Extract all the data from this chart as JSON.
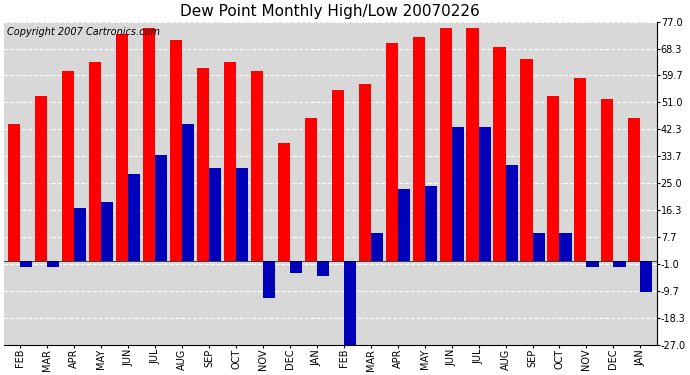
{
  "title": "Dew Point Monthly High/Low 20070226",
  "copyright": "Copyright 2007 Cartronics.com",
  "months": [
    "FEB",
    "MAR",
    "APR",
    "MAY",
    "JUN",
    "JUL",
    "AUG",
    "SEP",
    "OCT",
    "NOV",
    "DEC",
    "JAN",
    "FEB",
    "MAR",
    "APR",
    "MAY",
    "JUN",
    "JUL",
    "AUG",
    "SEP",
    "OCT",
    "NOV",
    "DEC",
    "JAN"
  ],
  "highs": [
    44,
    53,
    61,
    64,
    73,
    75,
    71,
    62,
    64,
    61,
    38,
    46,
    55,
    57,
    70,
    72,
    75,
    75,
    69,
    65,
    53,
    59,
    52,
    46
  ],
  "lows": [
    -2,
    -2,
    17,
    19,
    28,
    34,
    44,
    30,
    30,
    -12,
    -4,
    -5,
    -27,
    9,
    23,
    24,
    43,
    43,
    31,
    9,
    9,
    -2,
    -2,
    -10
  ],
  "high_color": "#ff0000",
  "low_color": "#0000bb",
  "background_color": "#ffffff",
  "plot_bg_color": "#d8d8d8",
  "grid_color": "#ffffff",
  "ylim": [
    -27,
    77
  ],
  "yticks": [
    -27.0,
    -18.3,
    -9.7,
    -1.0,
    7.7,
    16.3,
    25.0,
    33.7,
    42.3,
    51.0,
    59.7,
    68.3,
    77.0
  ],
  "title_fontsize": 11,
  "copyright_fontsize": 7,
  "tick_fontsize": 7
}
